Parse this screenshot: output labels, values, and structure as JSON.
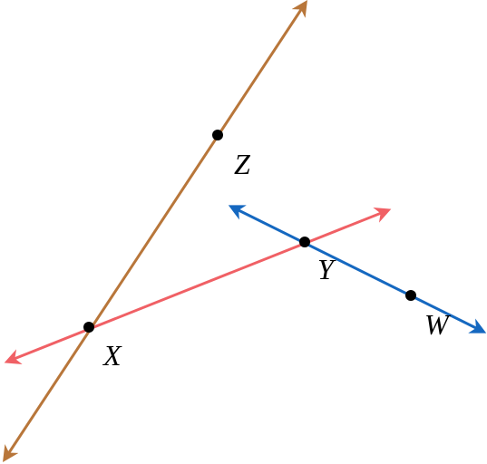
{
  "points": [
    {
      "label": "X"
    },
    {
      "label": "Y"
    },
    {
      "label": "Z"
    },
    {
      "label": "W"
    }
  ]
}
